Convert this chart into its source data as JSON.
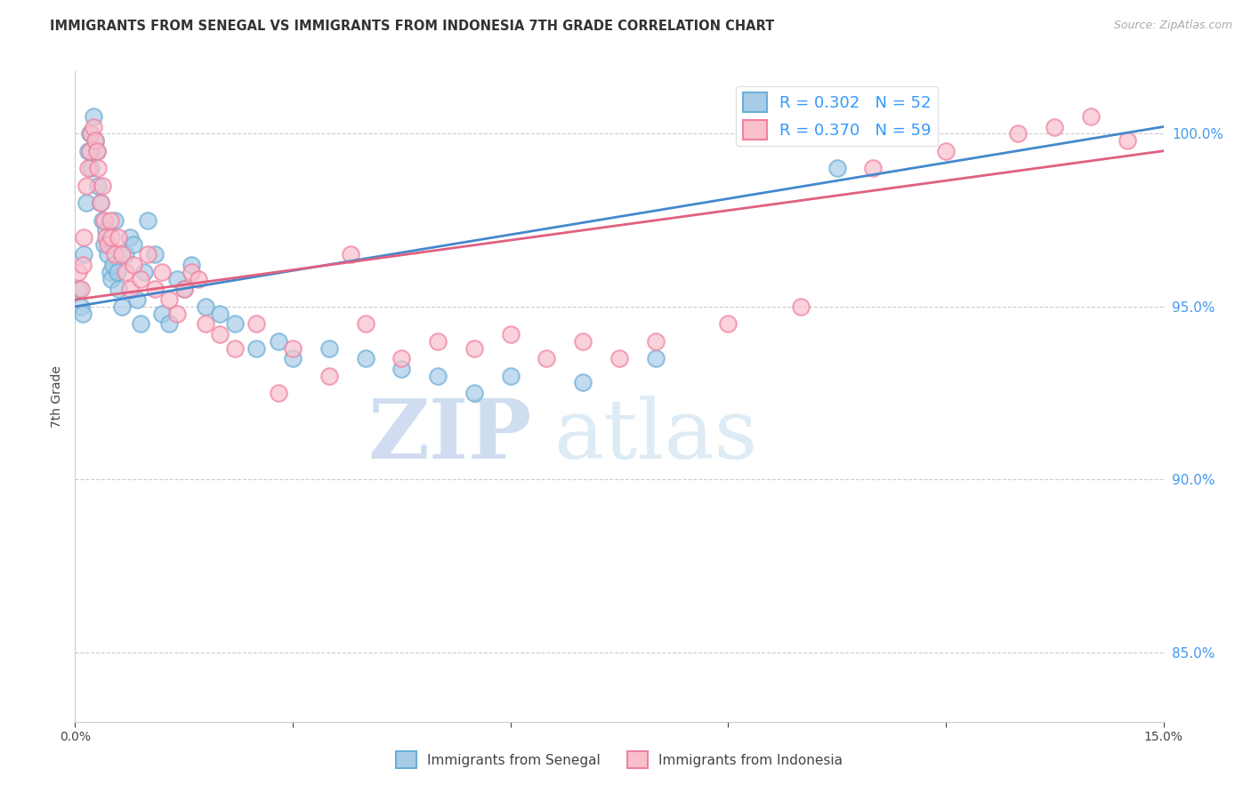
{
  "title": "IMMIGRANTS FROM SENEGAL VS IMMIGRANTS FROM INDONESIA 7TH GRADE CORRELATION CHART",
  "source": "Source: ZipAtlas.com",
  "ylabel": "7th Grade",
  "xmin": 0.0,
  "xmax": 15.0,
  "ymin": 83.0,
  "ymax": 101.8,
  "right_yticks": [
    85.0,
    90.0,
    95.0,
    100.0
  ],
  "watermark_zip": "ZIP",
  "watermark_atlas": "atlas",
  "legend": {
    "senegal_R": "R = 0.302",
    "senegal_N": "N = 52",
    "indonesia_R": "R = 0.370",
    "indonesia_N": "N = 59"
  },
  "color_senegal_fill": "#a8cce8",
  "color_senegal_edge": "#6aaed6",
  "color_indonesia_fill": "#f9c0cc",
  "color_indonesia_edge": "#f080a0",
  "color_senegal_line": "#4488cc",
  "color_indonesia_line": "#e06080",
  "color_right_axis": "#4499ee",
  "color_legend_text": "#3399ff",
  "senegal_x": [
    0.05,
    0.08,
    0.1,
    0.12,
    0.15,
    0.18,
    0.2,
    0.22,
    0.25,
    0.28,
    0.3,
    0.32,
    0.35,
    0.38,
    0.4,
    0.42,
    0.45,
    0.48,
    0.5,
    0.52,
    0.55,
    0.58,
    0.6,
    0.65,
    0.7,
    0.75,
    0.8,
    0.85,
    0.9,
    0.95,
    1.0,
    1.1,
    1.2,
    1.3,
    1.4,
    1.5,
    1.6,
    1.8,
    2.0,
    2.2,
    2.5,
    2.8,
    3.0,
    3.5,
    4.0,
    4.5,
    5.0,
    5.5,
    6.0,
    7.0,
    8.0,
    10.5
  ],
  "senegal_y": [
    95.5,
    95.0,
    94.8,
    96.5,
    98.0,
    99.5,
    100.0,
    99.0,
    100.5,
    99.8,
    99.5,
    98.5,
    98.0,
    97.5,
    96.8,
    97.2,
    96.5,
    96.0,
    95.8,
    96.2,
    97.5,
    96.0,
    95.5,
    95.0,
    96.5,
    97.0,
    96.8,
    95.2,
    94.5,
    96.0,
    97.5,
    96.5,
    94.8,
    94.5,
    95.8,
    95.5,
    96.2,
    95.0,
    94.8,
    94.5,
    93.8,
    94.0,
    93.5,
    93.8,
    93.5,
    93.2,
    93.0,
    92.5,
    93.0,
    92.8,
    93.5,
    99.0
  ],
  "indonesia_x": [
    0.05,
    0.08,
    0.1,
    0.12,
    0.15,
    0.18,
    0.2,
    0.22,
    0.25,
    0.28,
    0.3,
    0.32,
    0.35,
    0.38,
    0.4,
    0.42,
    0.45,
    0.48,
    0.5,
    0.55,
    0.6,
    0.65,
    0.7,
    0.75,
    0.8,
    0.9,
    1.0,
    1.1,
    1.2,
    1.3,
    1.4,
    1.5,
    1.6,
    1.7,
    1.8,
    2.0,
    2.2,
    2.5,
    2.8,
    3.0,
    3.5,
    3.8,
    4.0,
    4.5,
    5.0,
    5.5,
    6.0,
    6.5,
    7.0,
    7.5,
    8.0,
    9.0,
    10.0,
    11.0,
    12.0,
    13.0,
    13.5,
    14.0,
    14.5
  ],
  "indonesia_y": [
    96.0,
    95.5,
    96.2,
    97.0,
    98.5,
    99.0,
    99.5,
    100.0,
    100.2,
    99.8,
    99.5,
    99.0,
    98.0,
    98.5,
    97.5,
    97.0,
    96.8,
    97.5,
    97.0,
    96.5,
    97.0,
    96.5,
    96.0,
    95.5,
    96.2,
    95.8,
    96.5,
    95.5,
    96.0,
    95.2,
    94.8,
    95.5,
    96.0,
    95.8,
    94.5,
    94.2,
    93.8,
    94.5,
    92.5,
    93.8,
    93.0,
    96.5,
    94.5,
    93.5,
    94.0,
    93.8,
    94.2,
    93.5,
    94.0,
    93.5,
    94.0,
    94.5,
    95.0,
    99.0,
    99.5,
    100.0,
    100.2,
    100.5,
    99.8
  ]
}
